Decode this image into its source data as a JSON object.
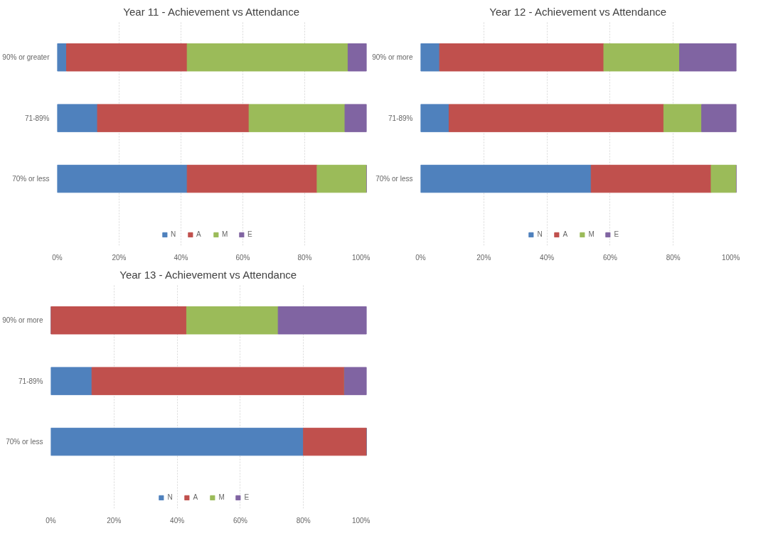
{
  "chart_data": [
    {
      "type": "bar",
      "orientation": "horizontal",
      "stacked": true,
      "title": "Year 11 - Achievement vs Attendance",
      "categories": [
        "90% or greater",
        "71-89%",
        "70% or less"
      ],
      "series": [
        {
          "name": "N",
          "color": "#4f81bd",
          "values": [
            3,
            13,
            42
          ]
        },
        {
          "name": "A",
          "color": "#c0504d",
          "values": [
            39,
            49,
            42
          ]
        },
        {
          "name": "M",
          "color": "#9bbb59",
          "values": [
            52,
            31,
            16
          ]
        },
        {
          "name": "E",
          "color": "#8064a2",
          "values": [
            6,
            7,
            0
          ]
        }
      ],
      "xlim": [
        0,
        100
      ],
      "xticks": [
        {
          "value": 0,
          "label": "0%"
        },
        {
          "value": 20,
          "label": "20%"
        },
        {
          "value": 40,
          "label": "40%"
        },
        {
          "value": 60,
          "label": "60%"
        },
        {
          "value": 80,
          "label": "80%"
        },
        {
          "value": 100,
          "label": "100%"
        }
      ],
      "grid": "x",
      "legend": "bottom"
    },
    {
      "type": "bar",
      "orientation": "horizontal",
      "stacked": true,
      "title": "Year 12 - Achievement vs Attendance",
      "categories": [
        "90% or more",
        "71-89%",
        "70% or less"
      ],
      "series": [
        {
          "name": "N",
          "color": "#4f81bd",
          "values": [
            6,
            9,
            54
          ]
        },
        {
          "name": "A",
          "color": "#c0504d",
          "values": [
            52,
            68,
            38
          ]
        },
        {
          "name": "M",
          "color": "#9bbb59",
          "values": [
            24,
            12,
            8
          ]
        },
        {
          "name": "E",
          "color": "#8064a2",
          "values": [
            18,
            11,
            0
          ]
        }
      ],
      "xlim": [
        0,
        100
      ],
      "xticks": [
        {
          "value": 0,
          "label": "0%"
        },
        {
          "value": 20,
          "label": "20%"
        },
        {
          "value": 40,
          "label": "40%"
        },
        {
          "value": 60,
          "label": "60%"
        },
        {
          "value": 80,
          "label": "80%"
        },
        {
          "value": 100,
          "label": "100%"
        }
      ],
      "grid": "x",
      "legend": "bottom"
    },
    {
      "type": "bar",
      "orientation": "horizontal",
      "stacked": true,
      "title": "Year 13 - Achievement vs Attendance",
      "categories": [
        "90% or more",
        "71-89%",
        "70% or less"
      ],
      "series": [
        {
          "name": "N",
          "color": "#4f81bd",
          "values": [
            0,
            13,
            80
          ]
        },
        {
          "name": "A",
          "color": "#c0504d",
          "values": [
            43,
            80,
            20
          ]
        },
        {
          "name": "M",
          "color": "#9bbb59",
          "values": [
            29,
            0,
            0
          ]
        },
        {
          "name": "E",
          "color": "#8064a2",
          "values": [
            28,
            7,
            0
          ]
        }
      ],
      "xlim": [
        0,
        100
      ],
      "xticks": [
        {
          "value": 0,
          "label": "0%"
        },
        {
          "value": 20,
          "label": "20%"
        },
        {
          "value": 40,
          "label": "40%"
        },
        {
          "value": 60,
          "label": "60%"
        },
        {
          "value": 80,
          "label": "80%"
        },
        {
          "value": 100,
          "label": "100%"
        }
      ],
      "grid": "x",
      "legend": "bottom"
    }
  ]
}
